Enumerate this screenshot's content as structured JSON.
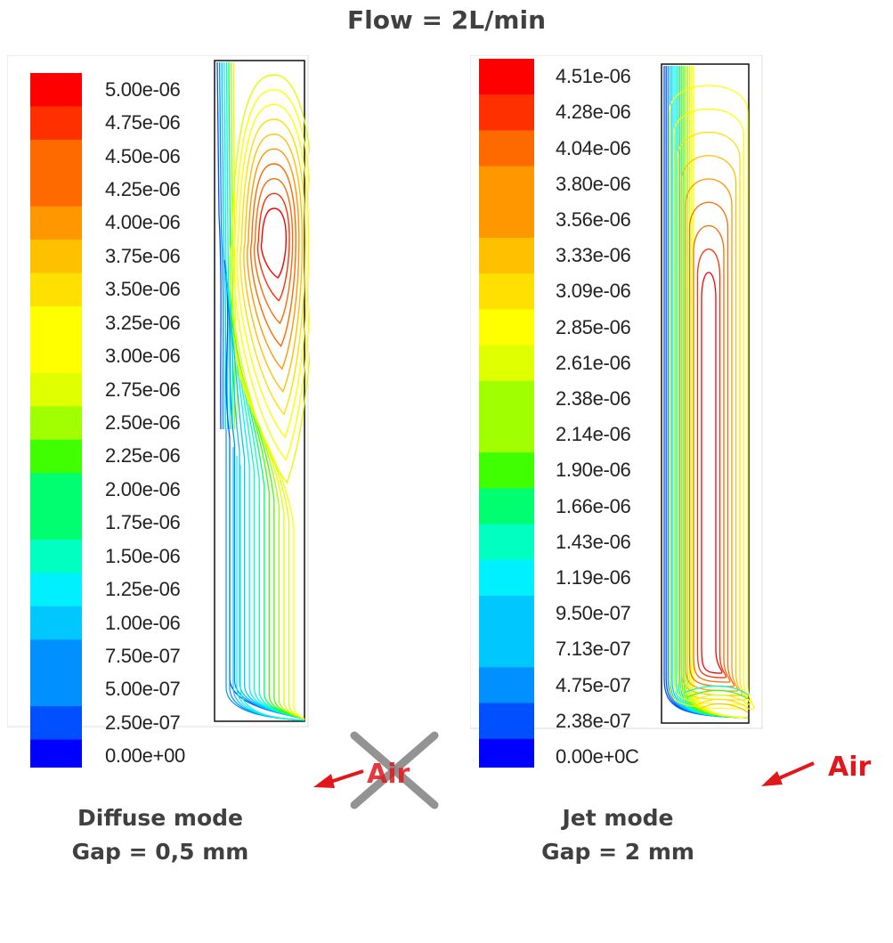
{
  "title": "Flow = 2L/min",
  "left_panel": {
    "scale_labels": [
      "5.00e-06",
      "4.75e-06",
      "4.50e-06",
      "4.25e-06",
      "4.00e-06",
      "3.75e-06",
      "3.50e-06",
      "3.25e-06",
      "3.00e-06",
      "2.75e-06",
      "2.50e-06",
      "2.25e-06",
      "2.00e-06",
      "1.75e-06",
      "1.50e-06",
      "1.25e-06",
      "1.00e-06",
      "7.50e-07",
      "5.00e-07",
      "2.50e-07",
      "0.00e+00"
    ],
    "air_label": "Air",
    "air_crossed_out": true,
    "caption_line1": "Diffuse mode",
    "caption_line2": "Gap = 0,5 mm"
  },
  "right_panel": {
    "scale_labels": [
      "4.51e-06",
      "4.28e-06",
      "4.04e-06",
      "3.80e-06",
      "3.56e-06",
      "3.33e-06",
      "3.09e-06",
      "2.85e-06",
      "2.61e-06",
      "2.38e-06",
      "2.14e-06",
      "1.90e-06",
      "1.66e-06",
      "1.43e-06",
      "1.19e-06",
      "9.50e-07",
      "7.13e-07",
      "4.75e-07",
      "2.38e-07",
      "0.00e+0C"
    ],
    "air_label": "Air",
    "air_crossed_out": false,
    "caption_line1": "Jet mode",
    "caption_line2": "Gap = 2 mm"
  },
  "colors": {
    "colormap": [
      "#0000ff",
      "#0050ff",
      "#0090ff",
      "#00c8ff",
      "#00f0ff",
      "#00ffc0",
      "#00ff70",
      "#40ff00",
      "#a0ff00",
      "#e0ff00",
      "#ffff00",
      "#ffe000",
      "#ffc000",
      "#ff9800",
      "#ff6a00",
      "#ff3000",
      "#ff0000"
    ],
    "arrow": "#e3161c",
    "cross": "#8a8a8a",
    "text": "#404040"
  }
}
